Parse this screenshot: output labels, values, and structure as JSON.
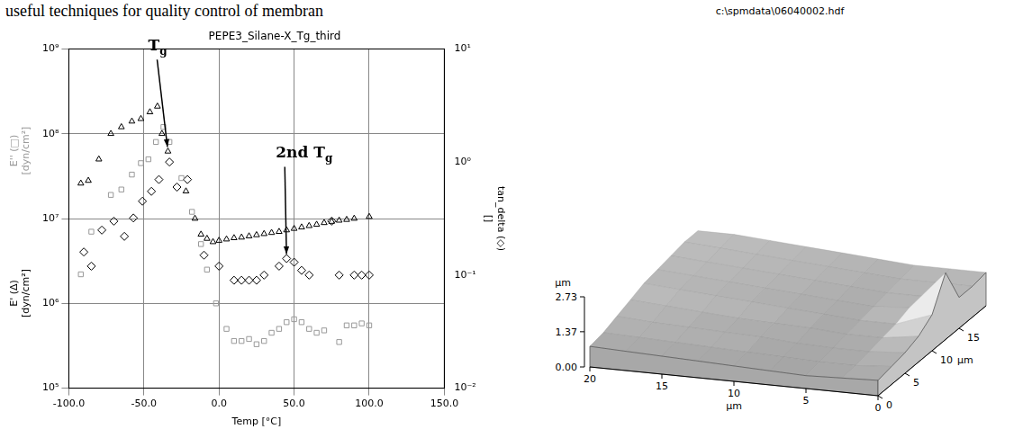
{
  "header_text": "useful techniques for quality control of membran",
  "chart_data": [
    {
      "type": "scatter",
      "title": "PEPE3_Silane-X_Tg_third",
      "xlabel": "Temp [°C]",
      "ylabel": [
        [
          "E'' (□)",
          "[dyn/cm²]"
        ],
        [
          "E' (Δ)",
          "[dyn/cm²]"
        ]
      ],
      "y2label": [
        "tan_delta (◇)",
        "[]"
      ],
      "log": "y",
      "grid": true,
      "xlim": [
        -100,
        150
      ],
      "xticks": [
        {
          "value": -100,
          "label": "-100.0"
        },
        {
          "value": -50,
          "label": "-50.0"
        },
        {
          "value": 0,
          "label": "0.0"
        },
        {
          "value": 50,
          "label": "50.0"
        },
        {
          "value": 100,
          "label": "100.0"
        },
        {
          "value": 150,
          "label": "150.0"
        }
      ],
      "ylim": [
        100000,
        1000000000
      ],
      "yticks": [
        {
          "value": 100000,
          "label": "10⁵"
        },
        {
          "value": 1000000,
          "label": "10⁶"
        },
        {
          "value": 10000000,
          "label": "10⁷"
        },
        {
          "value": 100000000,
          "label": "10⁸"
        },
        {
          "value": 1000000000,
          "label": "10⁹"
        }
      ],
      "y2lim": [
        0.01,
        10
      ],
      "y2ticks": [
        {
          "value": 0.01,
          "label": "10⁻²"
        },
        {
          "value": 0.1,
          "label": "10⁻¹"
        },
        {
          "value": 1,
          "label": "10⁰"
        },
        {
          "value": 10,
          "label": "10¹"
        }
      ],
      "series": [
        {
          "name": "E'",
          "color": "#000000",
          "marker": "triangle",
          "x": [
            -92,
            -87,
            -80,
            -72,
            -65,
            -58,
            -52,
            -46,
            -41,
            -38,
            -34,
            -22,
            -16,
            -12,
            -8,
            -4,
            0,
            5,
            10,
            15,
            20,
            25,
            30,
            35,
            40,
            45,
            50,
            55,
            60,
            65,
            70,
            75,
            80,
            85,
            90,
            100
          ],
          "values": [
            26000000.0,
            28000000.0,
            50000000.0,
            100000000.0,
            120000000.0,
            140000000.0,
            150000000.0,
            180000000.0,
            210000000.0,
            100000000.0,
            62000000.0,
            21000000.0,
            10000000.0,
            6500000.0,
            5800000.0,
            5300000.0,
            5500000.0,
            5700000.0,
            5900000.0,
            6000000.0,
            6200000.0,
            6400000.0,
            6600000.0,
            6800000.0,
            7000000.0,
            7300000.0,
            7600000.0,
            7900000.0,
            8200000.0,
            8500000.0,
            8900000.0,
            9200000.0,
            9500000.0,
            9700000.0,
            10000000.0,
            10500000.0
          ]
        },
        {
          "name": "E''",
          "color": "#999999",
          "marker": "square",
          "x": [
            -92,
            -85,
            -72,
            -65,
            -58,
            -52,
            -47,
            -42,
            -37,
            -33,
            -25,
            -18,
            -12,
            -8,
            -2,
            5,
            10,
            15,
            20,
            25,
            30,
            35,
            40,
            45,
            50,
            55,
            60,
            65,
            70,
            80,
            85,
            90,
            95,
            100
          ],
          "values": [
            2200000.0,
            7000000.0,
            19000000.0,
            22000000.0,
            33000000.0,
            45000000.0,
            50000000.0,
            80000000.0,
            120000000.0,
            80000000.0,
            30000000.0,
            12000000.0,
            5000000.0,
            2500000.0,
            1000000.0,
            500000.0,
            360000.0,
            360000.0,
            380000.0,
            330000.0,
            360000.0,
            450000.0,
            500000.0,
            600000.0,
            650000.0,
            600000.0,
            500000.0,
            450000.0,
            480000.0,
            350000.0,
            550000.0,
            550000.0,
            580000.0,
            550000.0
          ]
        },
        {
          "name": "tan_delta",
          "color": "#000000",
          "marker": "diamond",
          "axis": "y2",
          "x": [
            -90,
            -85,
            -78,
            -70,
            -63,
            -57,
            -51,
            -45,
            -40,
            -33,
            -28,
            -21,
            -10,
            0,
            10,
            15,
            20,
            25,
            30,
            40,
            45,
            50,
            55,
            60,
            75,
            80,
            90,
            95,
            100
          ],
          "values": [
            0.16,
            0.12,
            0.25,
            0.3,
            0.22,
            0.32,
            0.45,
            0.55,
            0.7,
            1.0,
            0.6,
            0.7,
            0.15,
            0.12,
            0.09,
            0.09,
            0.09,
            0.09,
            0.1,
            0.12,
            0.14,
            0.13,
            0.11,
            0.1,
            0.3,
            0.1,
            0.1,
            0.1,
            0.1
          ]
        }
      ],
      "annotations": [
        {
          "text": "Tg",
          "x": -34,
          "y": 62000000.0,
          "axis": "y"
        },
        {
          "text": "2nd Tg",
          "x": 45,
          "y": 0.14,
          "axis": "y2"
        }
      ]
    },
    {
      "type": "surface",
      "title": "c:\\spmdata\\06040002.hdf",
      "xlabel": "µm",
      "ylabel": "µm",
      "zlabel": "µm",
      "xlim": [
        0,
        20
      ],
      "xticks": [
        0,
        5,
        10,
        15,
        20
      ],
      "ylim": [
        0,
        20
      ],
      "yticks": [
        0,
        5,
        10,
        15
      ],
      "zlim": [
        0,
        2.73
      ],
      "zticks": [
        {
          "value": 0,
          "label": "0.00"
        },
        {
          "value": 1.37,
          "label": "1.37"
        },
        {
          "value": 2.73,
          "label": "2.73"
        }
      ],
      "x": [
        0,
        2.5,
        5,
        7.5,
        10,
        12.5,
        15,
        17.5,
        20
      ],
      "y": [
        0,
        2.5,
        5,
        7.5,
        10,
        12.5,
        15,
        17.5,
        20
      ],
      "heights": [
        [
          0.6,
          0.55,
          0.5,
          0.55,
          0.6,
          0.65,
          0.7,
          0.75,
          0.8
        ],
        [
          0.7,
          0.6,
          0.6,
          0.65,
          0.7,
          0.75,
          0.8,
          0.85,
          0.9
        ],
        [
          0.8,
          0.7,
          0.7,
          0.75,
          0.85,
          0.9,
          0.95,
          1.0,
          1.1
        ],
        [
          1.0,
          0.8,
          0.8,
          0.9,
          0.95,
          1.0,
          1.1,
          1.2,
          1.3
        ],
        [
          1.4,
          0.9,
          0.9,
          1.0,
          1.1,
          1.2,
          1.3,
          1.4,
          1.5
        ],
        [
          2.6,
          1.1,
          1.0,
          1.1,
          1.2,
          1.3,
          1.4,
          1.5,
          1.6
        ],
        [
          1.2,
          1.1,
          1.1,
          1.2,
          1.3,
          1.4,
          1.5,
          1.6,
          1.7
        ],
        [
          1.2,
          1.2,
          1.2,
          1.3,
          1.4,
          1.5,
          1.6,
          1.7,
          1.8
        ],
        [
          1.3,
          1.3,
          1.3,
          1.4,
          1.5,
          1.6,
          1.7,
          1.8,
          1.8
        ]
      ]
    }
  ]
}
